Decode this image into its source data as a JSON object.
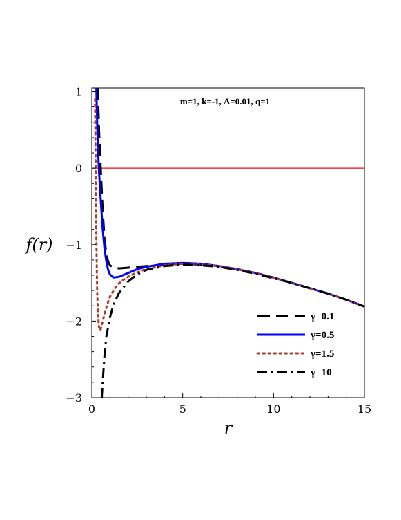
{
  "chart_data": {
    "type": "line",
    "title": "",
    "annotation": "m=1, k=-1, Λ=0.01, q=1",
    "xlabel": "r",
    "ylabel": "f(r)",
    "xlim": [
      0,
      15
    ],
    "ylim": [
      -3,
      1.05
    ],
    "xticks": [
      0,
      5,
      10,
      15
    ],
    "yticks": [
      1,
      0,
      -1,
      -2,
      -3
    ],
    "xtick_labels": [
      "0",
      "5",
      "10",
      "15"
    ],
    "ytick_labels": [
      "1",
      "0",
      "−1",
      "−2",
      "−3"
    ],
    "grid": false,
    "legend_position": "bottom-right",
    "reference_line": {
      "y": 0,
      "color": "#ff0000"
    },
    "series": [
      {
        "name": "γ=0.1",
        "color": "#000000",
        "style": "dash",
        "x": [
          0.33,
          0.4,
          0.5,
          0.6,
          0.7,
          0.8,
          0.9,
          1.0,
          1.2,
          1.5,
          2,
          3,
          4,
          5,
          6,
          7,
          8,
          9,
          10,
          11,
          12,
          13,
          14,
          15
        ],
        "y": [
          1.05,
          0.5,
          -0.05,
          -0.55,
          -0.92,
          -1.12,
          -1.22,
          -1.27,
          -1.3,
          -1.31,
          -1.3,
          -1.28,
          -1.26,
          -1.25,
          -1.26,
          -1.28,
          -1.32,
          -1.37,
          -1.43,
          -1.5,
          -1.57,
          -1.64,
          -1.72,
          -1.81
        ]
      },
      {
        "name": "γ=0.5",
        "color": "#0000ff",
        "style": "solid",
        "x": [
          0.25,
          0.3,
          0.35,
          0.4,
          0.5,
          0.6,
          0.7,
          0.8,
          0.9,
          1.0,
          1.2,
          1.5,
          2,
          2.5,
          3,
          4,
          5,
          6,
          7,
          8,
          9,
          10,
          11,
          12,
          13,
          14,
          15
        ],
        "y": [
          1.05,
          0.55,
          0.2,
          -0.05,
          -0.45,
          -0.8,
          -1.05,
          -1.22,
          -1.33,
          -1.39,
          -1.43,
          -1.42,
          -1.37,
          -1.32,
          -1.29,
          -1.25,
          -1.24,
          -1.25,
          -1.28,
          -1.32,
          -1.37,
          -1.43,
          -1.5,
          -1.57,
          -1.64,
          -1.72,
          -1.81
        ]
      },
      {
        "name": "γ=1.5",
        "color": "#b03a2e",
        "style": "dot",
        "x": [
          0.18,
          0.2,
          0.22,
          0.25,
          0.28,
          0.3,
          0.35,
          0.4,
          0.45,
          0.5,
          0.6,
          0.8,
          1.0,
          1.3,
          1.6,
          2,
          2.5,
          3,
          4,
          5,
          6,
          7,
          8,
          9,
          10,
          11,
          12,
          13,
          14,
          15
        ],
        "y": [
          0.9,
          0.3,
          -0.3,
          -0.9,
          -1.4,
          -1.65,
          -1.95,
          -2.08,
          -2.12,
          -2.1,
          -2.0,
          -1.82,
          -1.68,
          -1.56,
          -1.48,
          -1.42,
          -1.36,
          -1.32,
          -1.27,
          -1.25,
          -1.26,
          -1.28,
          -1.32,
          -1.37,
          -1.43,
          -1.5,
          -1.57,
          -1.64,
          -1.72,
          -1.81
        ]
      },
      {
        "name": "γ=10",
        "color": "#000000",
        "style": "dashdot",
        "x": [
          0.55,
          0.6,
          0.7,
          0.8,
          1.0,
          1.2,
          1.5,
          2,
          2.5,
          3,
          4,
          5,
          6,
          7,
          8,
          9,
          10,
          11,
          12,
          13,
          14,
          15
        ],
        "y": [
          -3.0,
          -2.8,
          -2.45,
          -2.2,
          -1.95,
          -1.78,
          -1.63,
          -1.48,
          -1.39,
          -1.33,
          -1.28,
          -1.26,
          -1.27,
          -1.29,
          -1.33,
          -1.38,
          -1.44,
          -1.5,
          -1.57,
          -1.64,
          -1.72,
          -1.81
        ]
      }
    ]
  }
}
